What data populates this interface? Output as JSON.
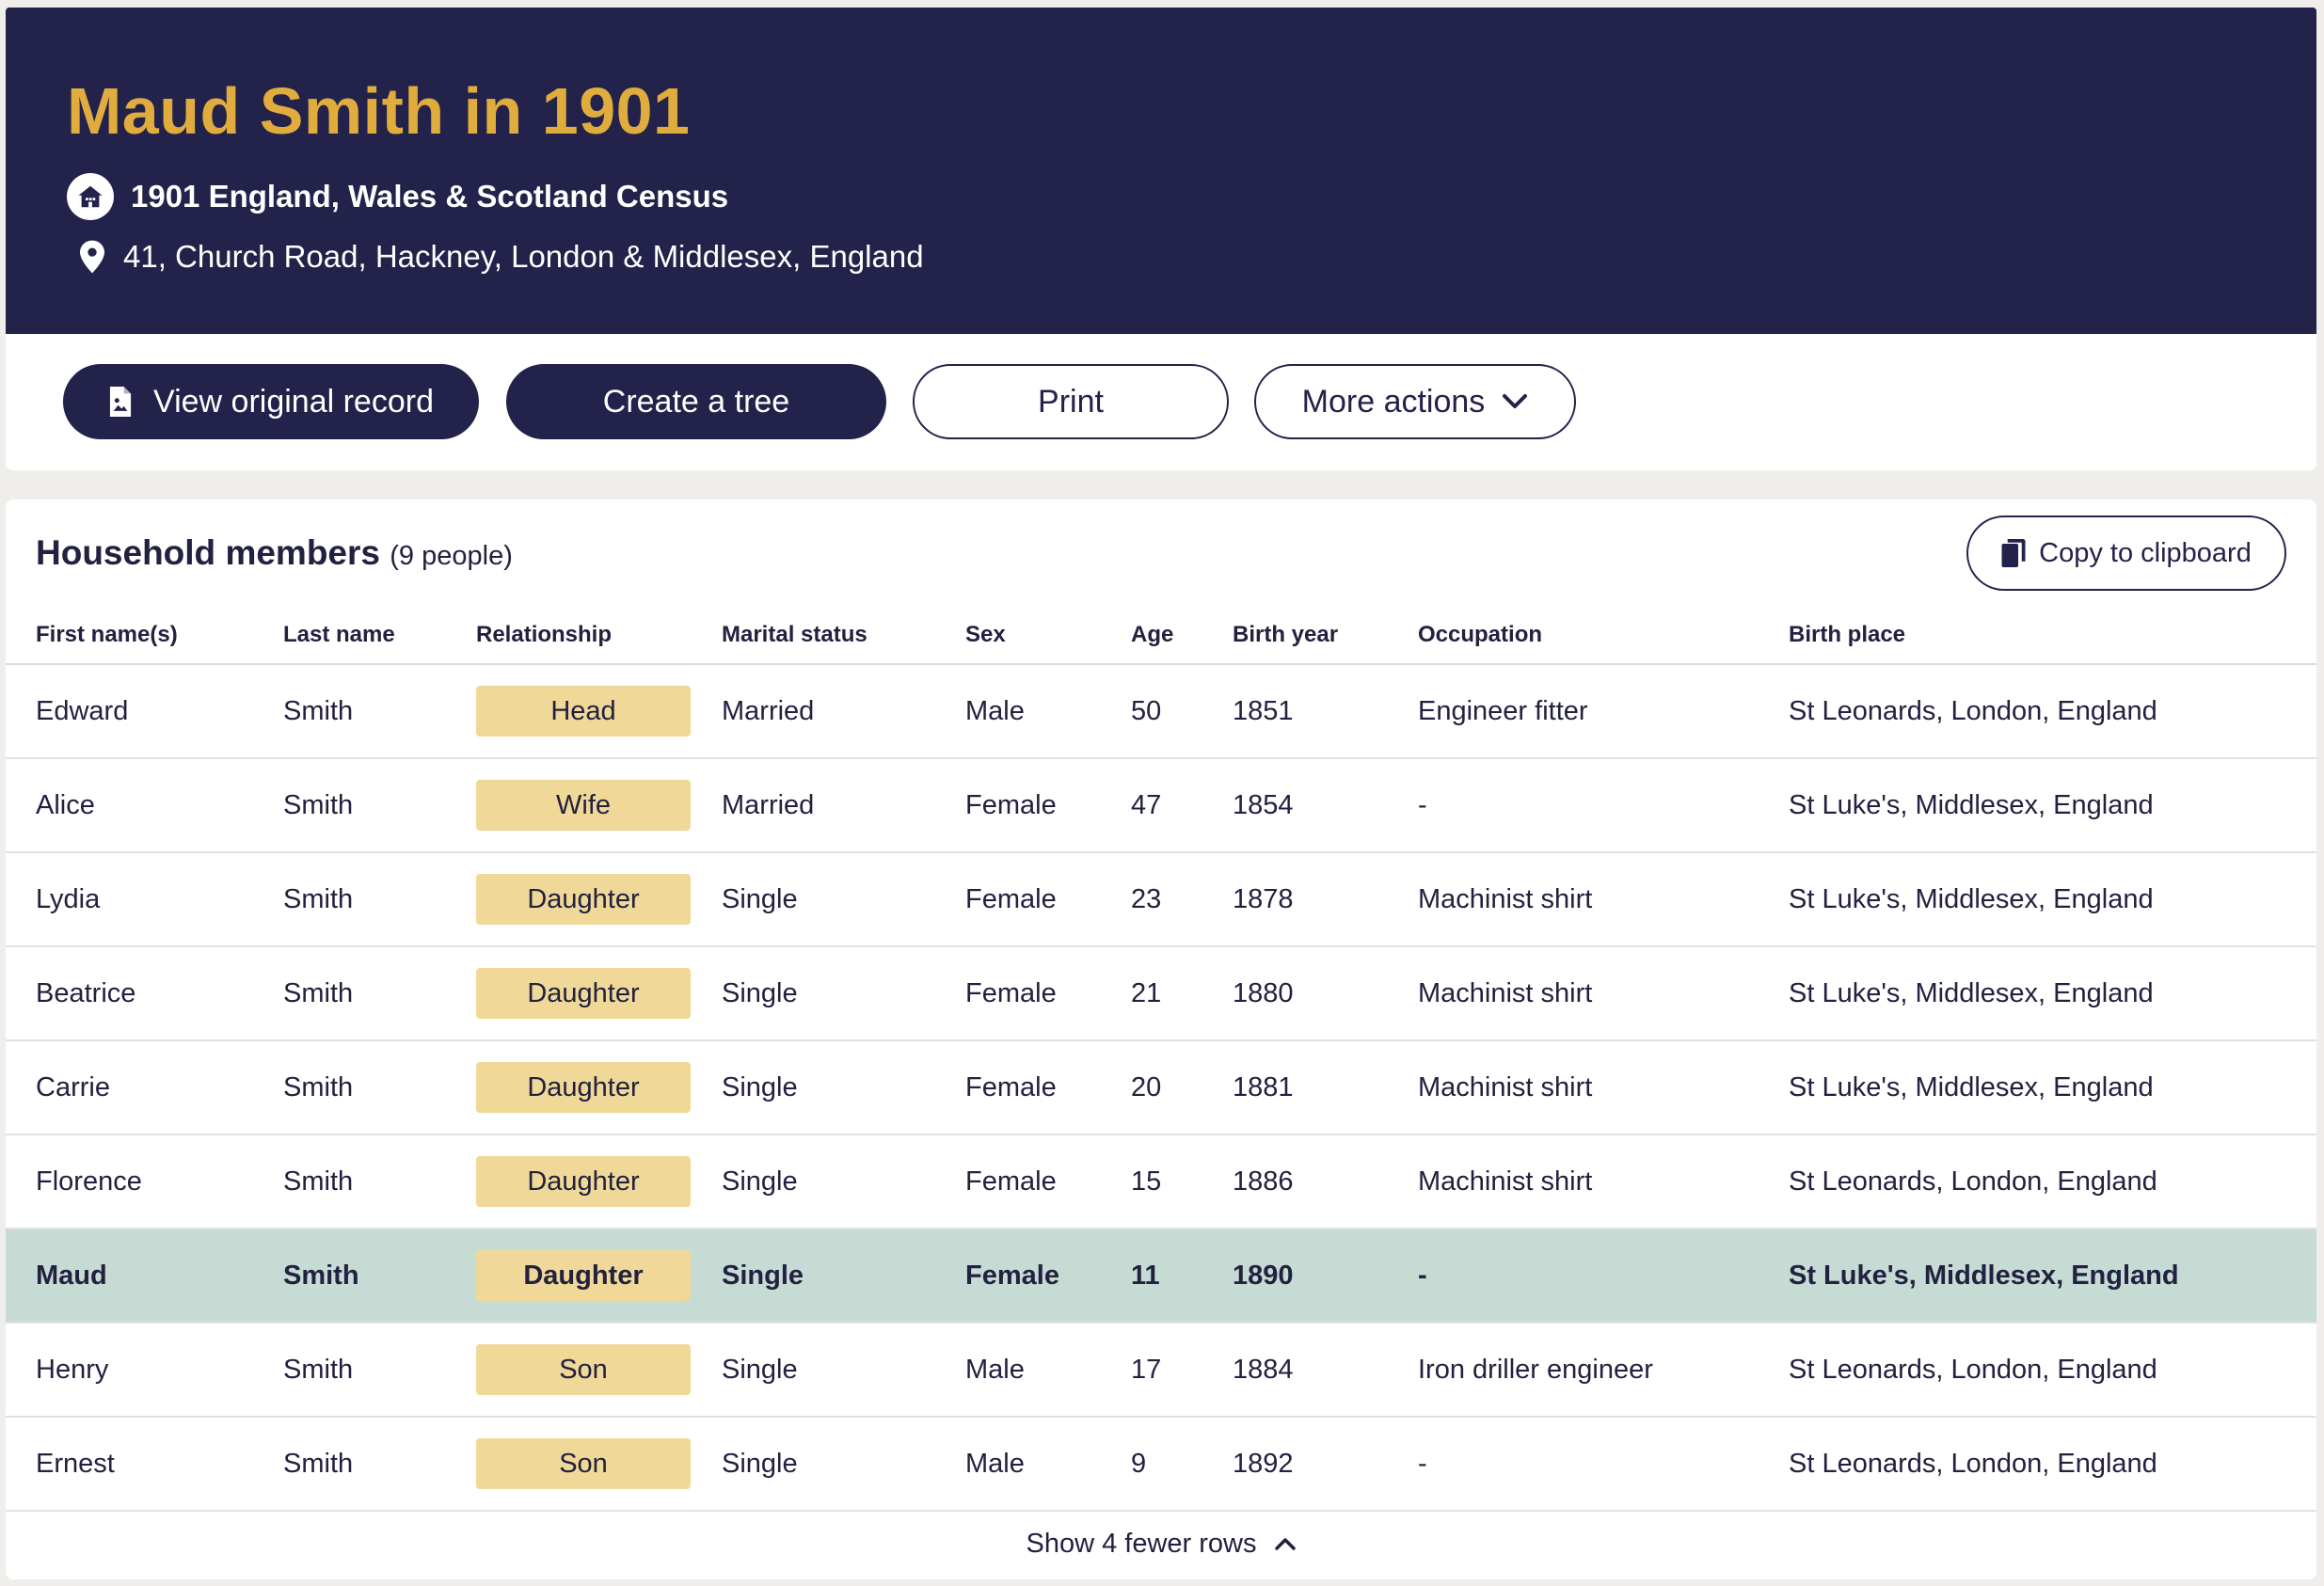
{
  "header": {
    "title": "Maud Smith in 1901",
    "census_icon": "house-icon",
    "census": "1901 England, Wales & Scotland Census",
    "location_icon": "map-pin-icon",
    "address": "41, Church Road, Hackney, London & Middlesex, England"
  },
  "actions": {
    "view_original": "View original record",
    "view_original_icon": "document-icon",
    "create_tree": "Create a tree",
    "print": "Print",
    "more_actions": "More actions",
    "more_actions_icon": "chevron-down-icon"
  },
  "household": {
    "title": "Household members",
    "count": "(9 people)",
    "copy_label": "Copy to clipboard",
    "copy_icon": "clipboard-icon",
    "columns": [
      "First name(s)",
      "Last name",
      "Relationship",
      "Marital status",
      "Sex",
      "Age",
      "Birth year",
      "Occupation",
      "Birth place"
    ],
    "rows": [
      [
        "Edward",
        "Smith",
        "Head",
        "Married",
        "Male",
        "50",
        "1851",
        "Engineer fitter",
        "St Leonards, London, England"
      ],
      [
        "Alice",
        "Smith",
        "Wife",
        "Married",
        "Female",
        "47",
        "1854",
        "-",
        "St Luke's, Middlesex, England"
      ],
      [
        "Lydia",
        "Smith",
        "Daughter",
        "Single",
        "Female",
        "23",
        "1878",
        "Machinist shirt",
        "St Luke's, Middlesex, England"
      ],
      [
        "Beatrice",
        "Smith",
        "Daughter",
        "Single",
        "Female",
        "21",
        "1880",
        "Machinist shirt",
        "St Luke's, Middlesex, England"
      ],
      [
        "Carrie",
        "Smith",
        "Daughter",
        "Single",
        "Female",
        "20",
        "1881",
        "Machinist shirt",
        "St Luke's, Middlesex, England"
      ],
      [
        "Florence",
        "Smith",
        "Daughter",
        "Single",
        "Female",
        "15",
        "1886",
        "Machinist shirt",
        "St Leonards, London, England"
      ],
      [
        "Maud",
        "Smith",
        "Daughter",
        "Single",
        "Female",
        "11",
        "1890",
        "-",
        "St Luke's, Middlesex, England"
      ],
      [
        "Henry",
        "Smith",
        "Son",
        "Single",
        "Male",
        "17",
        "1884",
        "Iron driller engineer",
        "St Leonards, London, England"
      ],
      [
        "Ernest",
        "Smith",
        "Son",
        "Single",
        "Male",
        "9",
        "1892",
        "-",
        "St Leonards, London, England"
      ]
    ],
    "highlighted_row": 6,
    "toggle_label": "Show 4 fewer rows",
    "toggle_icon": "chevron-up-icon"
  },
  "colors": {
    "navy": "#23224a",
    "gold": "#e0ac3e",
    "badge": "#f0d898",
    "highlight": "#c7dbd5"
  }
}
